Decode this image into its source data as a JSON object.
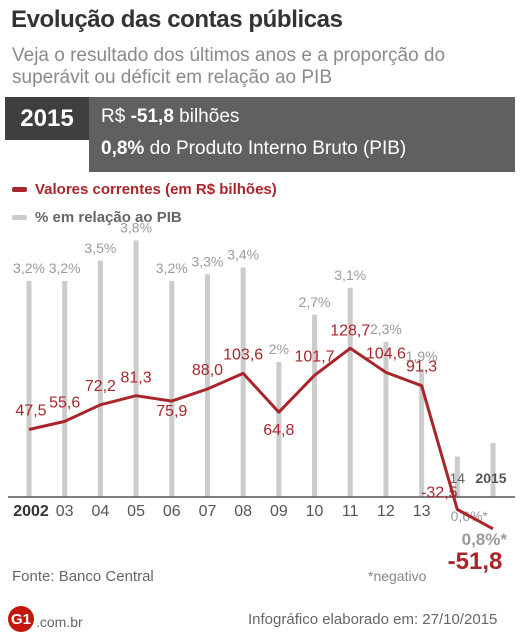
{
  "header": {
    "title": "Evolução das contas públicas",
    "subtitle": "Veja o resultado dos últimos anos e a proporção do superávit ou déficit em relação ao PIB"
  },
  "highlight": {
    "year": "2015",
    "prefix": "R$ ",
    "value": "-51,8",
    "unit": " bilhões",
    "pct": "0,8%",
    "pct_text": " do Produto Interno Bruto (PIB)"
  },
  "legend": {
    "values_label": "Valores correntes (em R$ bilhões)",
    "pct_label": "% em relação ao PIB"
  },
  "colors": {
    "line": "#a8262b",
    "bars": "#cccccc",
    "pct_labels": "#9a9a9a"
  },
  "chart_data": {
    "type": "line",
    "categories": [
      "2002",
      "03",
      "04",
      "05",
      "06",
      "07",
      "08",
      "09",
      "10",
      "11",
      "12",
      "13",
      "14",
      "2015"
    ],
    "series": [
      {
        "name": "Valores correntes (em R$ bilhões)",
        "values": [
          47.5,
          55.6,
          72.2,
          81.3,
          75.9,
          88.0,
          103.6,
          64.8,
          101.7,
          128.7,
          104.6,
          91.3,
          -32.5,
          -51.8
        ],
        "labels": [
          "47,5",
          "55,6",
          "72,2",
          "81,3",
          "75,9",
          "88,0",
          "103,6",
          "64,8",
          "101,7",
          "128,7",
          "104,6",
          "91,3",
          "-32,5",
          "-51,8"
        ]
      },
      {
        "name": "% em relação ao PIB",
        "type": "bar",
        "values": [
          3.2,
          3.2,
          3.5,
          3.8,
          3.2,
          3.3,
          3.4,
          2.0,
          2.7,
          3.1,
          2.3,
          1.9,
          0.6,
          0.8
        ],
        "labels": [
          "3,2%",
          "3,2%",
          "3,5%",
          "3,8%",
          "3,2%",
          "3,3%",
          "3,4%",
          "2%",
          "2,7%",
          "3,1%",
          "2,3%",
          "1,9%",
          "0,6%*",
          "0,8%*"
        ],
        "negative": [
          false,
          false,
          false,
          false,
          false,
          false,
          false,
          false,
          false,
          false,
          false,
          false,
          true,
          true
        ]
      }
    ],
    "grid": false,
    "legend": "top-left"
  },
  "footer": {
    "source": "Fonte: Banco Central",
    "note": "*negativo",
    "logo": "G1",
    "domain": ".com.br",
    "credit": "Infográfico elaborado em: 27/10/2015"
  }
}
